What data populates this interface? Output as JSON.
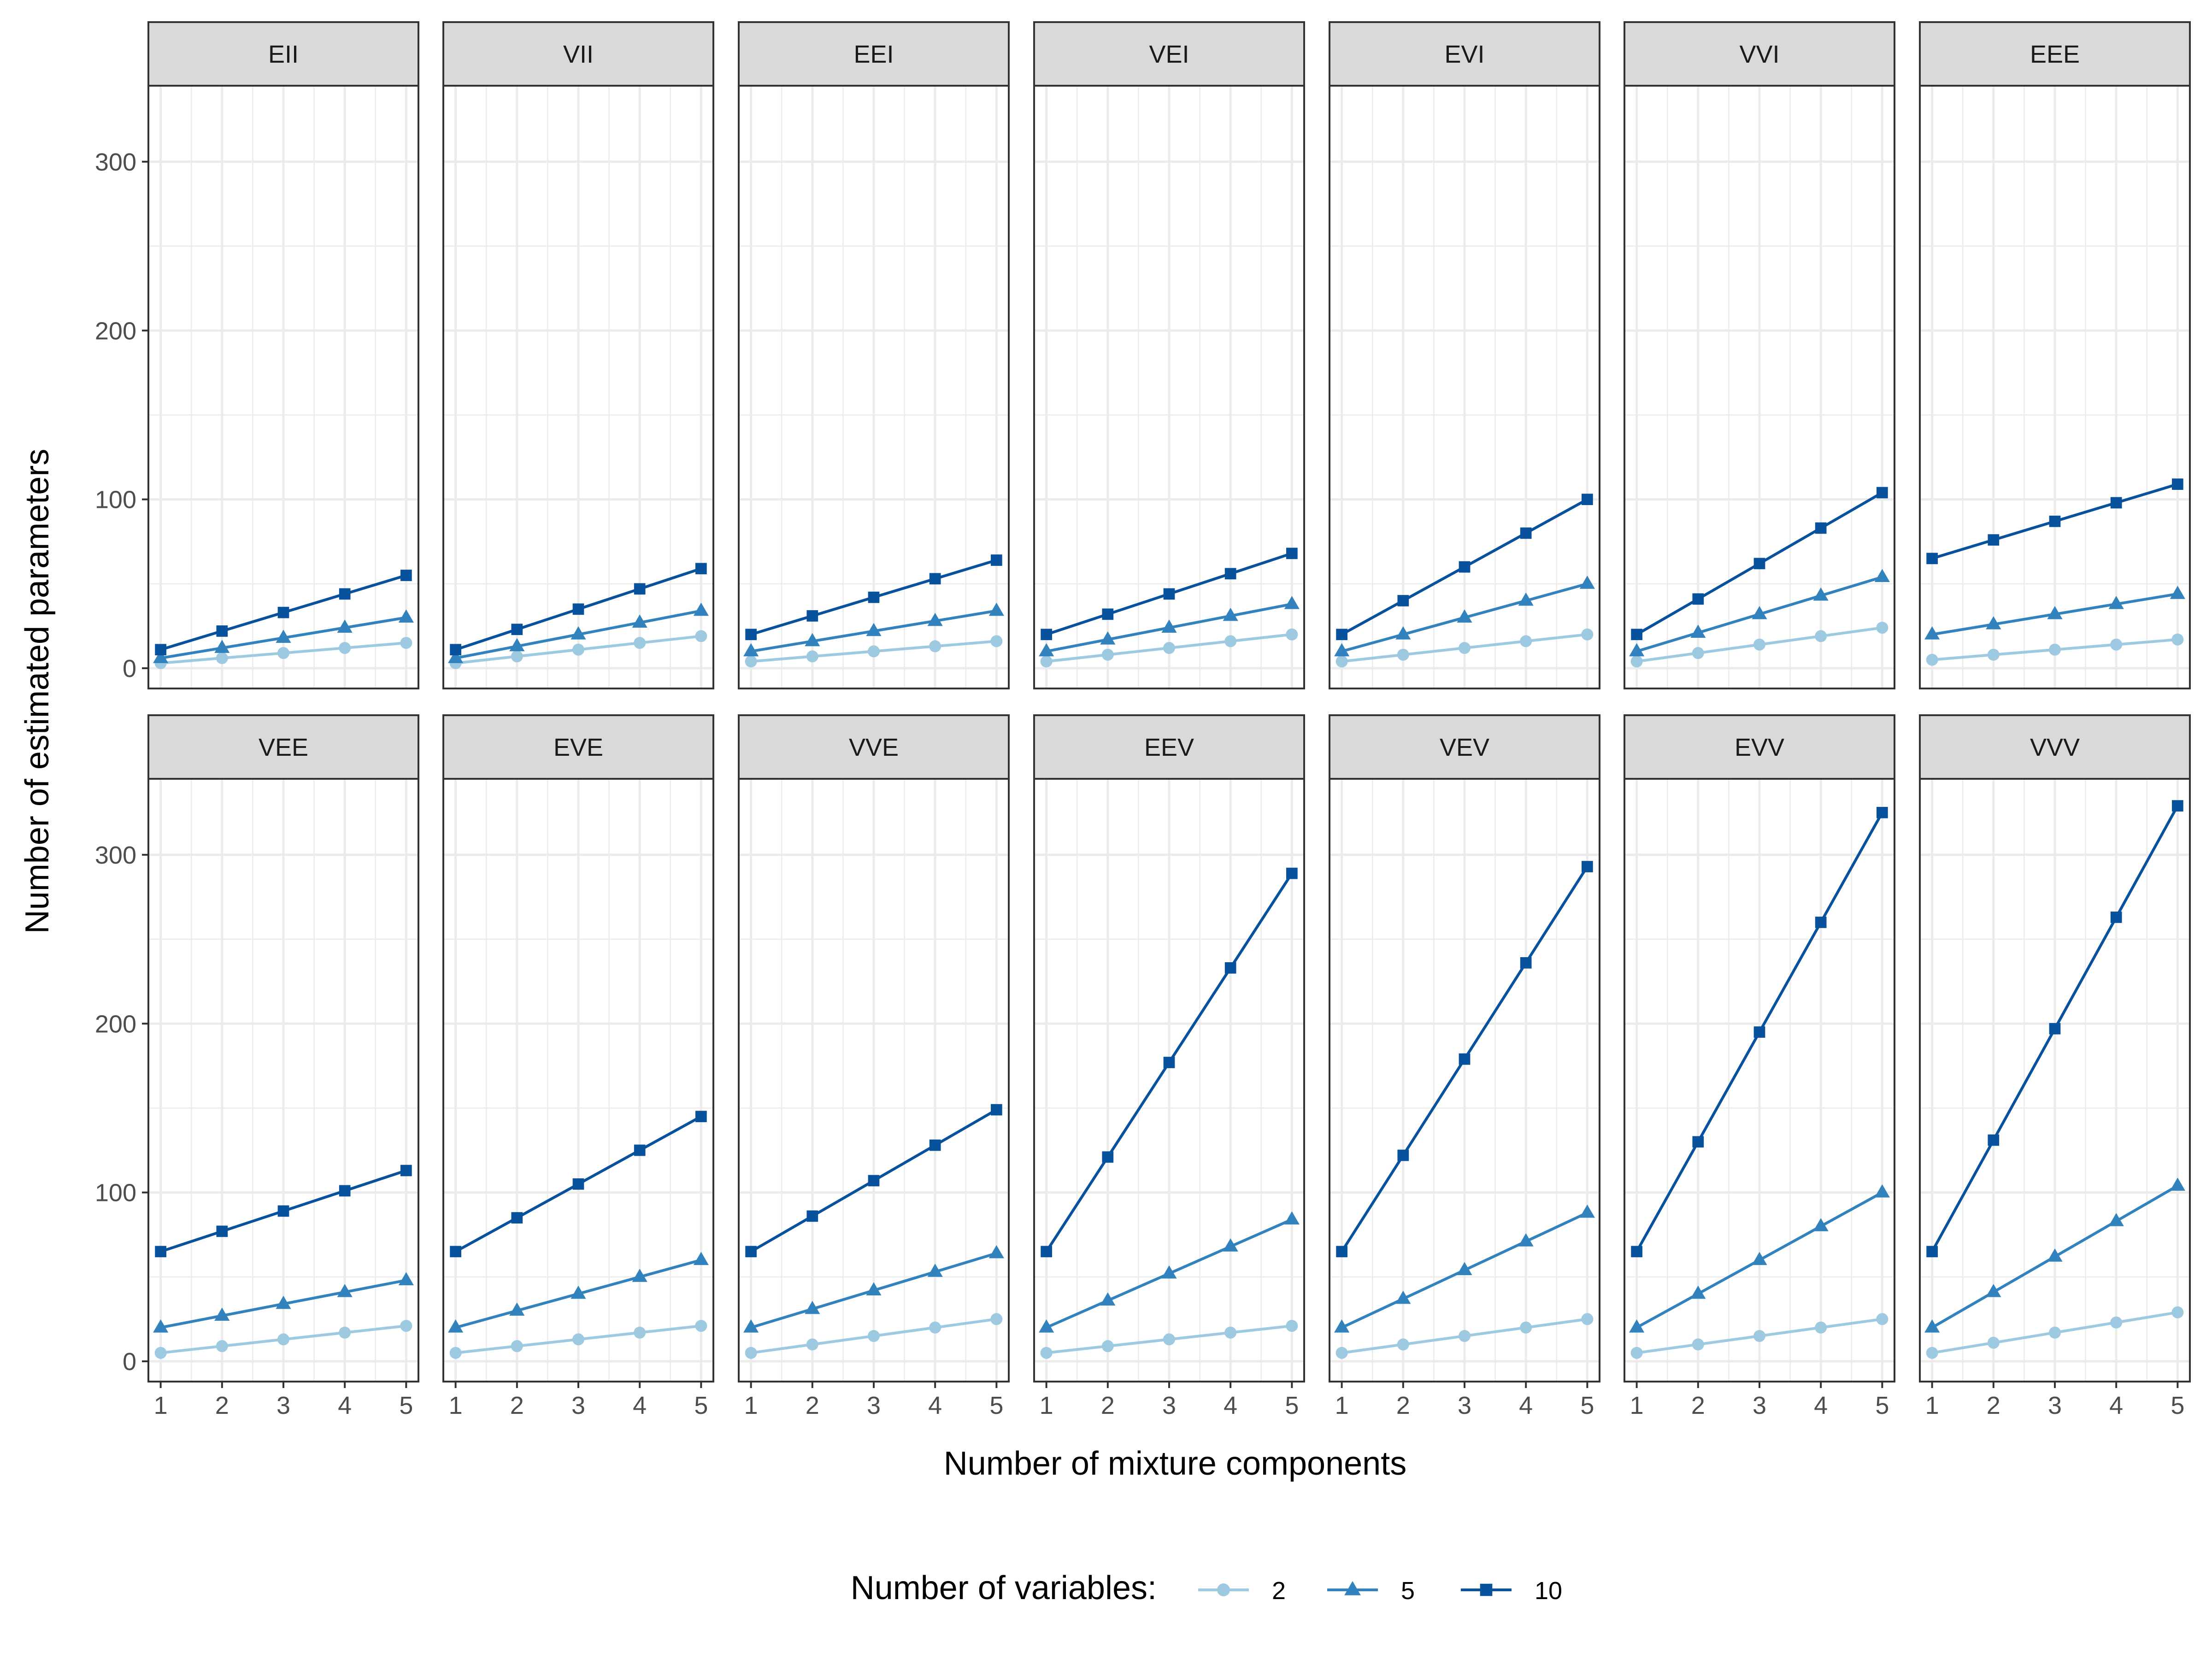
{
  "chart_data": {
    "type": "line",
    "xlabel": "Number of mixture components",
    "ylabel": "Number of estimated parameters",
    "x": [
      1,
      2,
      3,
      4,
      5
    ],
    "x_ticks": [
      "1",
      "2",
      "3",
      "4",
      "5"
    ],
    "ylim": [
      -12,
      345
    ],
    "y_ticks": [
      0,
      100,
      200,
      300
    ],
    "grid": true,
    "legend": {
      "title": "Number of variables:",
      "position": "bottom",
      "entries": [
        {
          "label": "2",
          "color": "#9ecae1",
          "marker": "circle"
        },
        {
          "label": "5",
          "color": "#3182bd",
          "marker": "triangle"
        },
        {
          "label": "10",
          "color": "#08519c",
          "marker": "square"
        }
      ]
    },
    "panels": [
      {
        "label": "EII",
        "series": [
          {
            "name": "2",
            "values": [
              3,
              6,
              9,
              12,
              15
            ]
          },
          {
            "name": "5",
            "values": [
              6,
              12,
              18,
              24,
              30
            ]
          },
          {
            "name": "10",
            "values": [
              11,
              22,
              33,
              44,
              55
            ]
          }
        ]
      },
      {
        "label": "VII",
        "series": [
          {
            "name": "2",
            "values": [
              3,
              7,
              11,
              15,
              19
            ]
          },
          {
            "name": "5",
            "values": [
              6,
              13,
              20,
              27,
              34
            ]
          },
          {
            "name": "10",
            "values": [
              11,
              23,
              35,
              47,
              59
            ]
          }
        ]
      },
      {
        "label": "EEI",
        "series": [
          {
            "name": "2",
            "values": [
              4,
              7,
              10,
              13,
              16
            ]
          },
          {
            "name": "5",
            "values": [
              10,
              16,
              22,
              28,
              34
            ]
          },
          {
            "name": "10",
            "values": [
              20,
              31,
              42,
              53,
              64
            ]
          }
        ]
      },
      {
        "label": "VEI",
        "series": [
          {
            "name": "2",
            "values": [
              4,
              8,
              12,
              16,
              20
            ]
          },
          {
            "name": "5",
            "values": [
              10,
              17,
              24,
              31,
              38
            ]
          },
          {
            "name": "10",
            "values": [
              20,
              32,
              44,
              56,
              68
            ]
          }
        ]
      },
      {
        "label": "EVI",
        "series": [
          {
            "name": "2",
            "values": [
              4,
              8,
              12,
              16,
              20
            ]
          },
          {
            "name": "5",
            "values": [
              10,
              20,
              30,
              40,
              50
            ]
          },
          {
            "name": "10",
            "values": [
              20,
              40,
              60,
              80,
              100
            ]
          }
        ]
      },
      {
        "label": "VVI",
        "series": [
          {
            "name": "2",
            "values": [
              4,
              9,
              14,
              19,
              24
            ]
          },
          {
            "name": "5",
            "values": [
              10,
              21,
              32,
              43,
              54
            ]
          },
          {
            "name": "10",
            "values": [
              20,
              41,
              62,
              83,
              104
            ]
          }
        ]
      },
      {
        "label": "EEE",
        "series": [
          {
            "name": "2",
            "values": [
              5,
              8,
              11,
              14,
              17
            ]
          },
          {
            "name": "5",
            "values": [
              20,
              26,
              32,
              38,
              44
            ]
          },
          {
            "name": "10",
            "values": [
              65,
              76,
              87,
              98,
              109
            ]
          }
        ]
      },
      {
        "label": "VEE",
        "series": [
          {
            "name": "2",
            "values": [
              5,
              9,
              13,
              17,
              21
            ]
          },
          {
            "name": "5",
            "values": [
              20,
              27,
              34,
              41,
              48
            ]
          },
          {
            "name": "10",
            "values": [
              65,
              77,
              89,
              101,
              113
            ]
          }
        ]
      },
      {
        "label": "EVE",
        "series": [
          {
            "name": "2",
            "values": [
              5,
              9,
              13,
              17,
              21
            ]
          },
          {
            "name": "5",
            "values": [
              20,
              30,
              40,
              50,
              60
            ]
          },
          {
            "name": "10",
            "values": [
              65,
              85,
              105,
              125,
              145
            ]
          }
        ]
      },
      {
        "label": "VVE",
        "series": [
          {
            "name": "2",
            "values": [
              5,
              10,
              15,
              20,
              25
            ]
          },
          {
            "name": "5",
            "values": [
              20,
              31,
              42,
              53,
              64
            ]
          },
          {
            "name": "10",
            "values": [
              65,
              86,
              107,
              128,
              149
            ]
          }
        ]
      },
      {
        "label": "EEV",
        "series": [
          {
            "name": "2",
            "values": [
              5,
              9,
              13,
              17,
              21
            ]
          },
          {
            "name": "5",
            "values": [
              20,
              36,
              52,
              68,
              84
            ]
          },
          {
            "name": "10",
            "values": [
              65,
              121,
              177,
              233,
              289
            ]
          }
        ]
      },
      {
        "label": "VEV",
        "series": [
          {
            "name": "2",
            "values": [
              5,
              10,
              15,
              20,
              25
            ]
          },
          {
            "name": "5",
            "values": [
              20,
              37,
              54,
              71,
              88
            ]
          },
          {
            "name": "10",
            "values": [
              65,
              122,
              179,
              236,
              293
            ]
          }
        ]
      },
      {
        "label": "EVV",
        "series": [
          {
            "name": "2",
            "values": [
              5,
              10,
              15,
              20,
              25
            ]
          },
          {
            "name": "5",
            "values": [
              20,
              40,
              60,
              80,
              100
            ]
          },
          {
            "name": "10",
            "values": [
              65,
              130,
              195,
              260,
              325
            ]
          }
        ]
      },
      {
        "label": "VVV",
        "series": [
          {
            "name": "2",
            "values": [
              5,
              11,
              17,
              23,
              29
            ]
          },
          {
            "name": "5",
            "values": [
              20,
              41,
              62,
              83,
              104
            ]
          },
          {
            "name": "10",
            "values": [
              65,
              131,
              197,
              263,
              329
            ]
          }
        ]
      }
    ]
  }
}
